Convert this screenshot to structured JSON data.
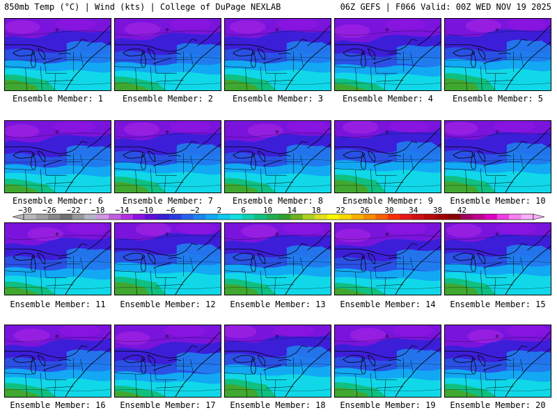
{
  "header": {
    "left": "850mb Temp (°C) | Wind (kts) | College of DuPage NEXLAB",
    "right": "06Z GEFS | F066 Valid: 00Z WED NOV 19 2025"
  },
  "panels": [
    {
      "label": "Ensemble Member: 1"
    },
    {
      "label": "Ensemble Member: 2"
    },
    {
      "label": "Ensemble Member: 3"
    },
    {
      "label": "Ensemble Member: 4"
    },
    {
      "label": "Ensemble Member: 5"
    },
    {
      "label": "Ensemble Member: 6"
    },
    {
      "label": "Ensemble Member: 7"
    },
    {
      "label": "Ensemble Member: 8"
    },
    {
      "label": "Ensemble Member: 9"
    },
    {
      "label": "Ensemble Member: 10"
    },
    {
      "label": "Ensemble Member: 11"
    },
    {
      "label": "Ensemble Member: 12"
    },
    {
      "label": "Ensemble Member: 13"
    },
    {
      "label": "Ensemble Member: 14"
    },
    {
      "label": "Ensemble Member: 15"
    },
    {
      "label": "Ensemble Member: 16"
    },
    {
      "label": "Ensemble Member: 17"
    },
    {
      "label": "Ensemble Member: 18"
    },
    {
      "label": "Ensemble Member: 19"
    },
    {
      "label": "Ensemble Member: 20"
    }
  ],
  "colorbar": {
    "labels": [
      "−30",
      "−26",
      "−22",
      "−18",
      "−14",
      "−10",
      "−6",
      "−2",
      "2",
      "6",
      "10",
      "14",
      "18",
      "22",
      "26",
      "30",
      "34",
      "38",
      "42"
    ],
    "colors": [
      "#b8b8b8",
      "#a0a0a0",
      "#888888",
      "#707070",
      "#989898",
      "#b4b4c8",
      "#d098e0",
      "#c060e0",
      "#b030e0",
      "#8c14e0",
      "#6010d8",
      "#3a1ed6",
      "#2a3ee0",
      "#2a62e8",
      "#1e84f0",
      "#12a8f4",
      "#10c8f0",
      "#10e0e0",
      "#10d0b0",
      "#10c080",
      "#20b050",
      "#30a030",
      "#70b020",
      "#b0d020",
      "#e0e020",
      "#f8f800",
      "#f8d800",
      "#f8b000",
      "#f88c00",
      "#f86000",
      "#f83000",
      "#e81818",
      "#d01010",
      "#b80808",
      "#a00000",
      "#880000",
      "#a00060",
      "#c00090",
      "#e000c0",
      "#f040e0",
      "#f880f0",
      "#f8b0f8"
    ]
  }
}
